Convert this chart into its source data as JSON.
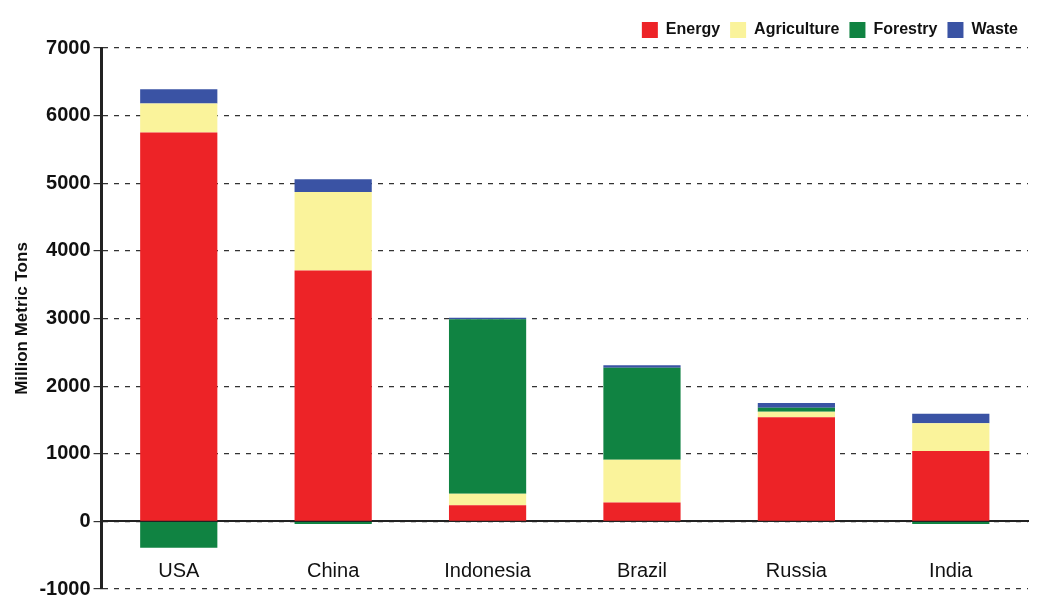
{
  "chart_data": {
    "type": "bar",
    "stacked": true,
    "ylabel": "Million Metric Tons",
    "categories": [
      "USA",
      "China",
      "Indonesia",
      "Brazil",
      "Russia",
      "India"
    ],
    "series": [
      {
        "name": "Energy",
        "color": "#ed2327",
        "values": [
          5750,
          3710,
          240,
          280,
          1540,
          1040
        ]
      },
      {
        "name": "Agriculture",
        "color": "#faf39b",
        "values": [
          430,
          1160,
          170,
          630,
          80,
          410
        ]
      },
      {
        "name": "Forestry",
        "color": "#108342",
        "values": [
          -390,
          -40,
          2580,
          1360,
          60,
          -40
        ]
      },
      {
        "name": "Waste",
        "color": "#3a53a4",
        "values": [
          210,
          190,
          20,
          40,
          70,
          140
        ]
      }
    ],
    "ylim": [
      -1000,
      7000
    ],
    "yticks": [
      -1000,
      0,
      1000,
      2000,
      3000,
      4000,
      5000,
      6000,
      7000
    ],
    "grid": "y",
    "legend": "top right"
  }
}
